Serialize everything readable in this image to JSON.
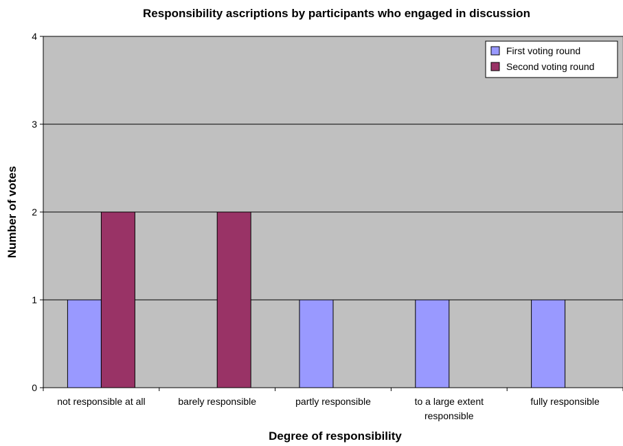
{
  "chart_data": {
    "type": "bar",
    "title": "Responsibility ascriptions by participants who engaged in discussion",
    "xlabel": "Degree of responsibility",
    "ylabel": "Number of votes",
    "categories": [
      [
        "not responsible at all"
      ],
      [
        "barely responsible"
      ],
      [
        "partly responsible"
      ],
      [
        "to a large extent",
        "responsible"
      ],
      [
        "fully responsible"
      ]
    ],
    "series": [
      {
        "name": "First voting round",
        "values": [
          1,
          0,
          1,
          1,
          1
        ],
        "color": "#9999ff"
      },
      {
        "name": "Second voting round",
        "values": [
          2,
          2,
          0,
          0,
          0
        ],
        "color": "#993366"
      }
    ],
    "ylim": [
      0,
      4
    ],
    "yticks": [
      0,
      1,
      2,
      3,
      4
    ],
    "grid": true,
    "legend_position": "top-right",
    "plot_background": "#c0c0c0"
  }
}
